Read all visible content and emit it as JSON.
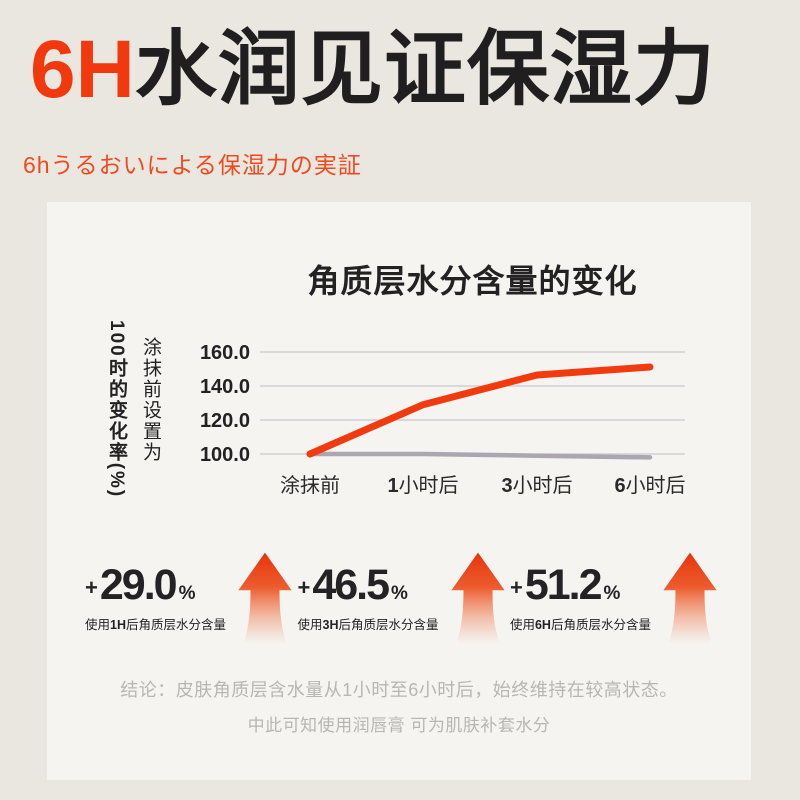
{
  "colors": {
    "background": "#EAE6E0",
    "panel": "#F5F4F1",
    "accent_red": "#F2380D",
    "subtitle_red": "#F14A1F",
    "text_black": "#232122",
    "gray_line": "#ABA6AF",
    "gridline": "#CBC7CE",
    "conclusion_gray": "#B9B6B1",
    "arrow_gradient_top": "#E8330C",
    "arrow_gradient_bottom": "#F08559"
  },
  "header": {
    "title_accent": "6H",
    "title_rest": "水润见证保湿力",
    "subtitle": "6hうるおいによる保湿力の実証"
  },
  "chart_data": {
    "type": "line",
    "title": "角质层水分含量的变化",
    "ylabel": "涂抹前设置为100时的变化率(%)",
    "ylabel_columns": [
      "涂抹前设置为",
      "100时的变化率(%)"
    ],
    "categories": [
      "涂抹前",
      "1小时后",
      "3小时后",
      "6小时后"
    ],
    "yticks": [
      160.0,
      140.0,
      120.0,
      100.0
    ],
    "ytick_labels": [
      "160.0",
      "140.0",
      "120.0",
      "100.0"
    ],
    "ylim": [
      95,
      165
    ],
    "grid": true,
    "legend": "none",
    "series": [
      {
        "name": "orange-line",
        "color": "#F23A0F",
        "values": [
          100.0,
          129.0,
          146.5,
          151.2
        ]
      },
      {
        "name": "gray-line",
        "color": "#ABA6AF",
        "values": [
          100.0,
          100.0,
          99.0,
          98.0
        ]
      }
    ]
  },
  "stats": [
    {
      "plus": "+",
      "value": "29.0",
      "unit": "%",
      "label_pre": "使用",
      "label_strong": "1H",
      "label_post": "后角质层水分含量"
    },
    {
      "plus": "+",
      "value": "46.5",
      "unit": "%",
      "label_pre": "使用",
      "label_strong": "3H",
      "label_post": "后角质层水分含量"
    },
    {
      "plus": "+",
      "value": "51.2",
      "unit": "%",
      "label_pre": "使用",
      "label_strong": "6H",
      "label_post": "后角质层水分含量"
    }
  ],
  "conclusion": {
    "line1": "结论：皮肤角质层含水量从1小时至6小时后，始终维持在较高状态。",
    "line2": "中此可知使用润唇膏 可为肌肤补套水分"
  }
}
